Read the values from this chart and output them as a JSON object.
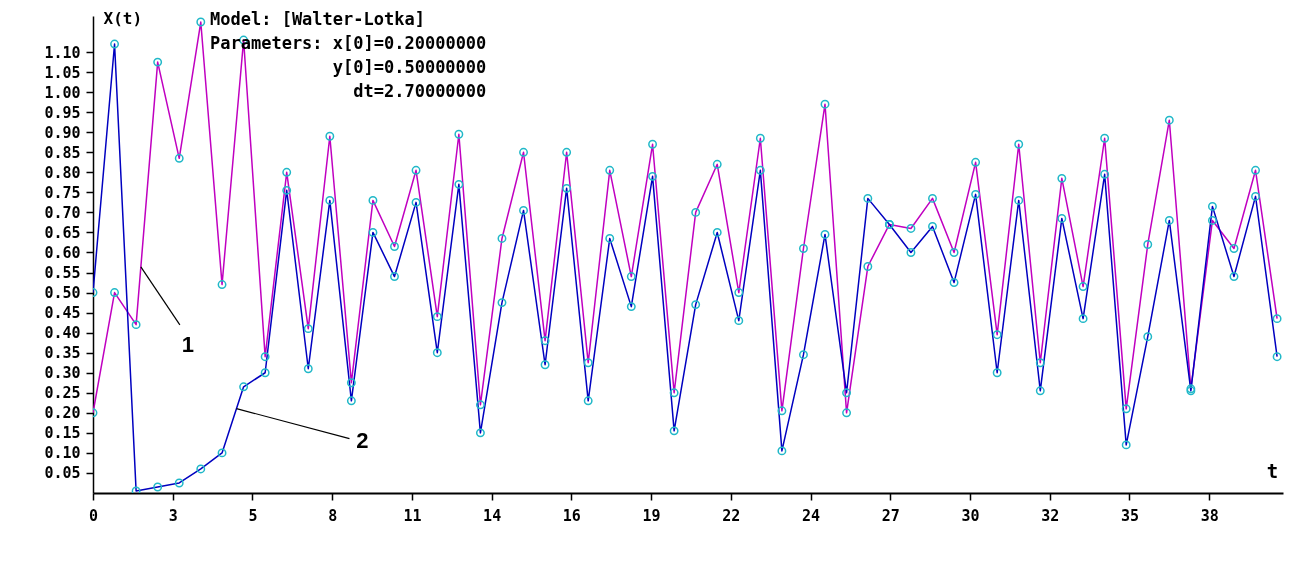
{
  "chart_data": {
    "type": "line",
    "xlabel": "t",
    "ylabel": "X(t)",
    "annotations": [
      "Model: [Walter-Lotka]",
      "Parameters: x[0]=0.20000000",
      "y[0]=0.50000000",
      "dt=2.70000000"
    ],
    "x": [
      0,
      0.73,
      1.46,
      2.19,
      2.92,
      3.65,
      4.37,
      5.1,
      5.83,
      6.56,
      7.29,
      8.02,
      8.75,
      9.48,
      10.21,
      10.94,
      11.66,
      12.39,
      13.12,
      13.85,
      14.58,
      15.31,
      16.04,
      16.77,
      17.5,
      18.23,
      18.95,
      19.68,
      20.41,
      21.14,
      21.87,
      22.6,
      23.33,
      24.06,
      24.79,
      25.52,
      26.24,
      26.97,
      27.7,
      28.43,
      29.16,
      29.89,
      30.62,
      31.35,
      32.08,
      32.81,
      33.53,
      34.26,
      34.99,
      35.72,
      36.45,
      37.18,
      37.91,
      38.64,
      39.37,
      40.1
    ],
    "series": [
      {
        "name": "1",
        "color": "#c000c0",
        "values": [
          0.2,
          0.5,
          0.42,
          1.075,
          0.835,
          1.175,
          0.52,
          1.13,
          0.34,
          0.8,
          0.41,
          0.89,
          0.275,
          0.73,
          0.615,
          0.805,
          0.44,
          0.895,
          0.22,
          0.635,
          0.85,
          0.38,
          0.85,
          0.325,
          0.805,
          0.54,
          0.87,
          0.25,
          0.7,
          0.82,
          0.5,
          0.885,
          0.205,
          0.61,
          0.97,
          0.2,
          0.565,
          0.67,
          0.66,
          0.735,
          0.6,
          0.825,
          0.395,
          0.87,
          0.325,
          0.785,
          0.515,
          0.885,
          0.21,
          0.62,
          0.93,
          0.26,
          0.68,
          0.61,
          0.805,
          0.435
        ]
      },
      {
        "name": "2",
        "color": "#0000c0",
        "values": [
          0.5,
          1.12,
          0.005,
          0.015,
          0.025,
          0.06,
          0.1,
          0.265,
          0.3,
          0.755,
          0.31,
          0.73,
          0.23,
          0.65,
          0.54,
          0.725,
          0.35,
          0.77,
          0.15,
          0.475,
          0.705,
          0.32,
          0.76,
          0.23,
          0.635,
          0.465,
          0.79,
          0.155,
          0.47,
          0.65,
          0.43,
          0.805,
          0.105,
          0.345,
          0.645,
          0.25,
          0.735,
          0.67,
          0.6,
          0.665,
          0.525,
          0.745,
          0.3,
          0.73,
          0.255,
          0.685,
          0.435,
          0.795,
          0.12,
          0.39,
          0.68,
          0.255,
          0.715,
          0.54,
          0.74,
          0.34
        ]
      }
    ],
    "xlim": [
      0,
      40.3
    ],
    "xticks": [
      {
        "value": 0,
        "label": "0"
      },
      {
        "value": 2.7,
        "label": "3"
      },
      {
        "value": 5.4,
        "label": "5"
      },
      {
        "value": 8.1,
        "label": "8"
      },
      {
        "value": 10.8,
        "label": "11"
      },
      {
        "value": 13.5,
        "label": "14"
      },
      {
        "value": 16.2,
        "label": "16"
      },
      {
        "value": 18.9,
        "label": "19"
      },
      {
        "value": 21.6,
        "label": "22"
      },
      {
        "value": 24.3,
        "label": "24"
      },
      {
        "value": 27,
        "label": "27"
      },
      {
        "value": 29.7,
        "label": "30"
      },
      {
        "value": 32.4,
        "label": "32"
      },
      {
        "value": 35.1,
        "label": "35"
      },
      {
        "value": 37.8,
        "label": "38"
      }
    ],
    "ylim": [
      0,
      1.19
    ],
    "yticks": [
      0.05,
      {
        "value": 0.1,
        "label": "0.10"
      },
      0.15,
      {
        "value": 0.2,
        "label": "0.20"
      },
      0.25,
      {
        "value": 0.3,
        "label": "0.30"
      },
      0.35,
      {
        "value": 0.4,
        "label": "0.40"
      },
      0.45,
      {
        "value": 0.5,
        "label": "0.50"
      },
      0.55,
      {
        "value": 0.6,
        "label": "0.60"
      },
      0.65,
      {
        "value": 0.7,
        "label": "0.70"
      },
      0.75,
      {
        "value": 0.8,
        "label": "0.80"
      },
      0.85,
      {
        "value": 0.9,
        "label": "0.90"
      },
      0.95,
      {
        "value": 1,
        "label": "1.00"
      },
      1.05,
      {
        "value": 1.1,
        "label": "1.10"
      }
    ],
    "grid": false,
    "marker": "circle",
    "line_style": "solid"
  }
}
